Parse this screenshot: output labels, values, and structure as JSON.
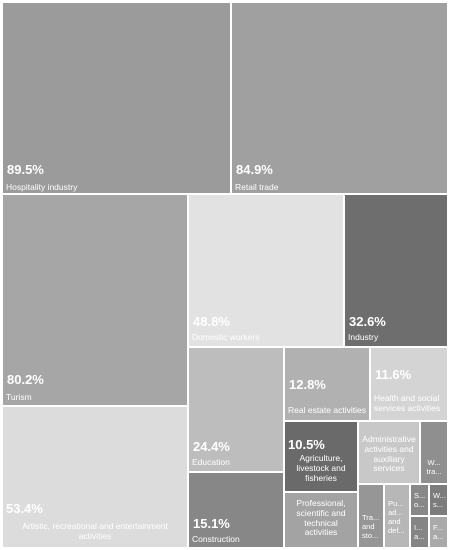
{
  "chart_data": {
    "type": "treemap",
    "unit": "%",
    "items": [
      {
        "label": "Hospitality industry",
        "value_label": "89.5%",
        "value": 89.5,
        "color": "#9b9b9b"
      },
      {
        "label": "Retail trade",
        "value_label": "84.9%",
        "value": 84.9,
        "color": "#a0a0a0"
      },
      {
        "label": "Turism",
        "value_label": "80.2%",
        "value": 80.2,
        "color": "#a6a6a6"
      },
      {
        "label": "Domestic workers",
        "value_label": "48.8%",
        "value": 48.8,
        "color": "#e2e2e2"
      },
      {
        "label": "Industry",
        "value_label": "32.6%",
        "value": 32.6,
        "color": "#6e6e6e"
      },
      {
        "label": "Artistic, recreational and entertainment activities",
        "value_label": "53.4%",
        "value": 53.4,
        "color": "#dcdcdc"
      },
      {
        "label": "Education",
        "value_label": "24.4%",
        "value": 24.4,
        "color": "#bdbdbd"
      },
      {
        "label": "Real estate activities",
        "value_label": "12.8%",
        "value": 12.8,
        "color": "#b1b1b1"
      },
      {
        "label": "Health and social services activities",
        "value_label": "11.6%",
        "value": 11.6,
        "color": "#d4d4d4"
      },
      {
        "label": "Construction",
        "value_label": "15.1%",
        "value": 15.1,
        "color": "#878787"
      },
      {
        "label": "Agriculture, livestock and fisheries",
        "value_label": "10.5%",
        "value": 10.5,
        "color": "#6a6a6a"
      },
      {
        "label": "Professional, scientific and technical activities",
        "value_label": "",
        "value": null,
        "color": "#a3a3a3"
      },
      {
        "label": "Administrative activities and auxiliary services",
        "value_label": "",
        "value": null,
        "color": "#c8c8c8"
      },
      {
        "label": "W... tra...",
        "value_label": "",
        "value": null,
        "color": "#8f8f8f"
      },
      {
        "label": "Tra... and sto...",
        "value_label": "",
        "value": null,
        "color": "#969696"
      },
      {
        "label": "Pu... ad... and def...",
        "value_label": "",
        "value": null,
        "color": "#b7b7b7"
      },
      {
        "label": "S... o...",
        "value_label": "",
        "value": null,
        "color": "#888888"
      },
      {
        "label": "W... s...",
        "value_label": "",
        "value": null,
        "color": "#7c7c7c"
      },
      {
        "label": "I... a...",
        "value_label": "",
        "value": null,
        "color": "#858585"
      },
      {
        "label": "F... a...",
        "value_label": "",
        "value": null,
        "color": "#a9a9a9"
      }
    ]
  }
}
